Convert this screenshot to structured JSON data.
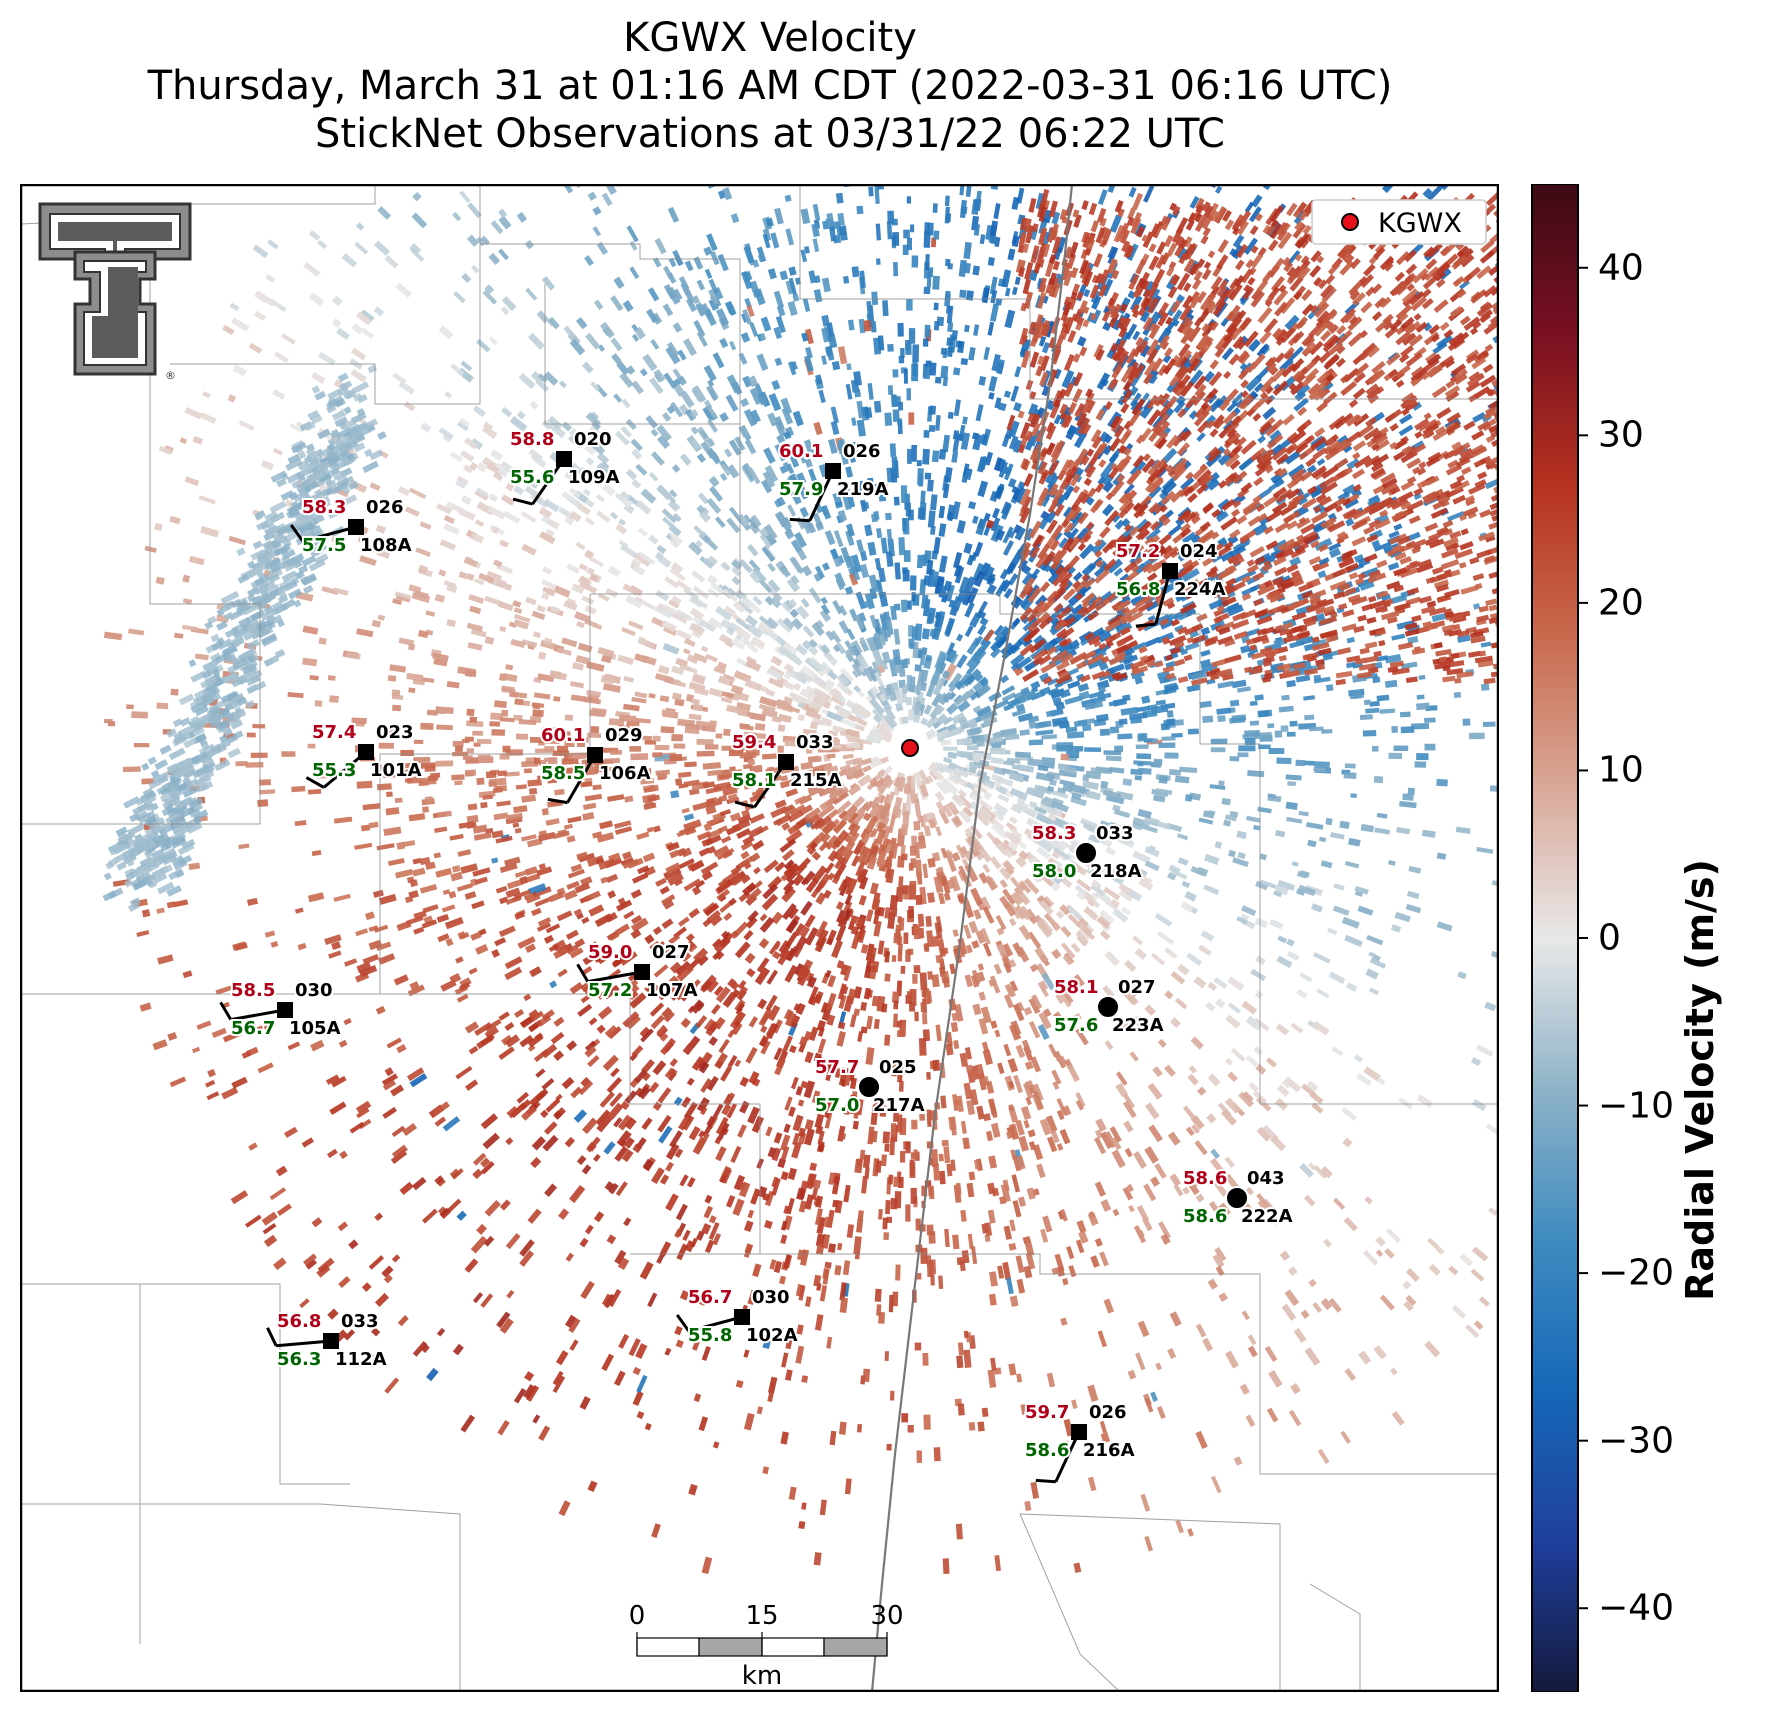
{
  "title": {
    "line1": "KGWX Velocity",
    "line2": "Thursday, March 31 at 01:16 AM CDT (2022-03-31 06:16 UTC)",
    "line3": "StickNet Observations at 03/31/22 06:22 UTC"
  },
  "legend": {
    "label": "KGWX",
    "marker_color": "#e8101a"
  },
  "colorbar": {
    "label": "Radial Velocity (m/s)",
    "min": -45,
    "max": 45,
    "ticks": [
      40,
      30,
      20,
      10,
      0,
      -10,
      -20,
      -30,
      -40
    ],
    "tick_labels": [
      "40",
      "30",
      "20",
      "10",
      "0",
      "−10",
      "−20",
      "−30",
      "−40"
    ],
    "colors": [
      "#141a3c",
      "#1f3f9e",
      "#1668b8",
      "#3f8bc0",
      "#8fb3c8",
      "#e8e8e8",
      "#d9a898",
      "#c96a4e",
      "#b5321f",
      "#7a1022",
      "#3d0a14"
    ]
  },
  "scale_bar": {
    "labels": [
      "0",
      "15",
      "30"
    ],
    "unit": "km"
  },
  "stations": [
    {
      "id": "020",
      "code": "109A",
      "temp": "58.8",
      "dew": "55.6",
      "marker": "square"
    },
    {
      "id": "026",
      "code": "219A",
      "temp": "60.1",
      "dew": "57.9",
      "marker": "square"
    },
    {
      "id": "026",
      "code": "108A",
      "temp": "58.3",
      "dew": "57.5",
      "marker": "square"
    },
    {
      "id": "024",
      "code": "224A",
      "temp": "57.2",
      "dew": "56.8",
      "marker": "square"
    },
    {
      "id": "023",
      "code": "101A",
      "temp": "57.4",
      "dew": "55.3",
      "marker": "square"
    },
    {
      "id": "029",
      "code": "106A",
      "temp": "60.1",
      "dew": "58.5",
      "marker": "square"
    },
    {
      "id": "033",
      "code": "215A",
      "temp": "59.4",
      "dew": "58.1",
      "marker": "square"
    },
    {
      "id": "033",
      "code": "218A",
      "temp": "58.3",
      "dew": "58.0",
      "marker": "circle"
    },
    {
      "id": "027",
      "code": "107A",
      "temp": "59.0",
      "dew": "57.2",
      "marker": "square"
    },
    {
      "id": "030",
      "code": "105A",
      "temp": "58.5",
      "dew": "56.7",
      "marker": "square"
    },
    {
      "id": "027",
      "code": "223A",
      "temp": "58.1",
      "dew": "57.6",
      "marker": "circle"
    },
    {
      "id": "025",
      "code": "217A",
      "temp": "57.7",
      "dew": "57.0",
      "marker": "circle"
    },
    {
      "id": "043",
      "code": "222A",
      "temp": "58.6",
      "dew": "58.6",
      "marker": "circle"
    },
    {
      "id": "030",
      "code": "102A",
      "temp": "56.7",
      "dew": "55.8",
      "marker": "square"
    },
    {
      "id": "033",
      "code": "112A",
      "temp": "56.8",
      "dew": "56.3",
      "marker": "square"
    },
    {
      "id": "026",
      "code": "216A",
      "temp": "59.7",
      "dew": "58.6",
      "marker": "square"
    }
  ],
  "colors": {
    "temp": "#b0001a",
    "dew": "#006400",
    "id": "#000000"
  }
}
